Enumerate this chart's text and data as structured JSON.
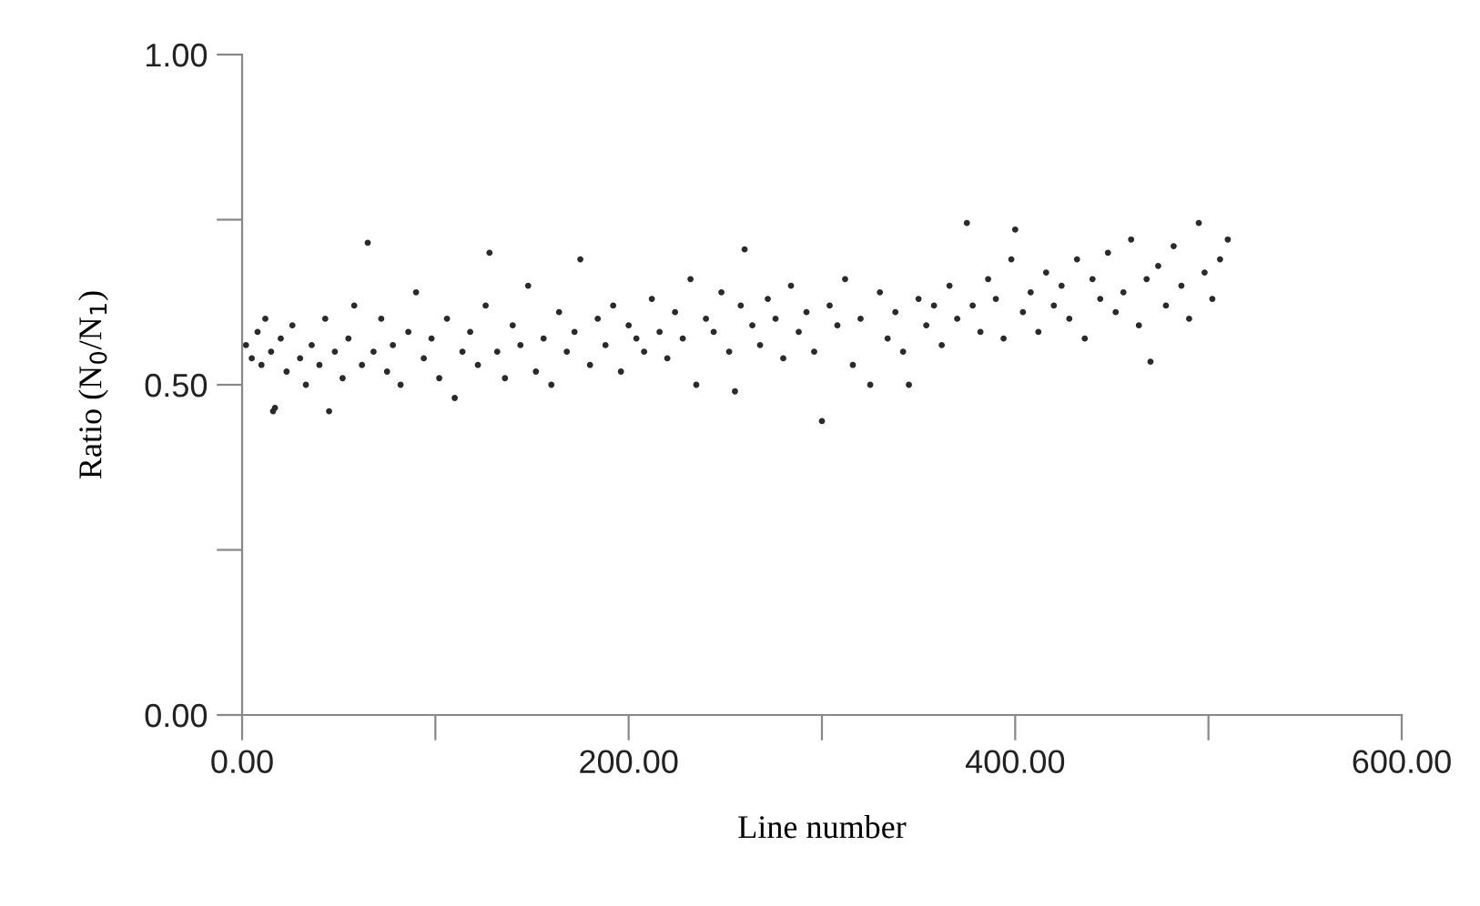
{
  "chart_data": {
    "type": "scatter",
    "xlabel": "Line number",
    "ylabel": "Ratio (N$_{0}$/N$_{1}$)",
    "x": [
      2,
      5,
      8,
      10,
      12,
      15,
      16,
      17,
      20,
      23,
      26,
      30,
      33,
      36,
      40,
      43,
      45,
      48,
      52,
      55,
      58,
      62,
      65,
      68,
      72,
      75,
      78,
      82,
      86,
      90,
      94,
      98,
      102,
      106,
      110,
      114,
      118,
      122,
      126,
      128,
      132,
      136,
      140,
      144,
      148,
      152,
      156,
      160,
      164,
      168,
      172,
      175,
      180,
      184,
      188,
      192,
      196,
      200,
      204,
      208,
      212,
      216,
      220,
      224,
      228,
      232,
      235,
      240,
      244,
      248,
      252,
      255,
      258,
      260,
      264,
      268,
      272,
      276,
      280,
      284,
      288,
      292,
      296,
      300,
      304,
      308,
      312,
      316,
      320,
      325,
      330,
      334,
      338,
      342,
      345,
      350,
      354,
      358,
      362,
      366,
      370,
      375,
      378,
      382,
      386,
      390,
      394,
      398,
      400,
      404,
      408,
      412,
      416,
      420,
      424,
      428,
      432,
      436,
      440,
      444,
      448,
      452,
      456,
      460,
      464,
      468,
      470,
      474,
      478,
      482,
      486,
      490,
      495,
      498,
      502,
      506,
      510
    ],
    "values": [
      0.56,
      0.54,
      0.58,
      0.53,
      0.6,
      0.55,
      0.46,
      0.465,
      0.57,
      0.52,
      0.59,
      0.54,
      0.5,
      0.56,
      0.53,
      0.6,
      0.46,
      0.55,
      0.51,
      0.57,
      0.62,
      0.53,
      0.715,
      0.55,
      0.6,
      0.52,
      0.56,
      0.5,
      0.58,
      0.64,
      0.54,
      0.57,
      0.51,
      0.6,
      0.48,
      0.55,
      0.58,
      0.53,
      0.62,
      0.7,
      0.55,
      0.51,
      0.59,
      0.56,
      0.65,
      0.52,
      0.57,
      0.5,
      0.61,
      0.55,
      0.58,
      0.69,
      0.53,
      0.6,
      0.56,
      0.62,
      0.52,
      0.59,
      0.57,
      0.55,
      0.63,
      0.58,
      0.54,
      0.61,
      0.57,
      0.66,
      0.5,
      0.6,
      0.58,
      0.64,
      0.55,
      0.49,
      0.62,
      0.705,
      0.59,
      0.56,
      0.63,
      0.6,
      0.54,
      0.65,
      0.58,
      0.61,
      0.55,
      0.445,
      0.62,
      0.59,
      0.66,
      0.53,
      0.6,
      0.5,
      0.64,
      0.57,
      0.61,
      0.55,
      0.5,
      0.63,
      0.59,
      0.62,
      0.56,
      0.65,
      0.6,
      0.745,
      0.62,
      0.58,
      0.66,
      0.63,
      0.57,
      0.69,
      0.735,
      0.61,
      0.64,
      0.58,
      0.67,
      0.62,
      0.65,
      0.6,
      0.69,
      0.57,
      0.66,
      0.63,
      0.7,
      0.61,
      0.64,
      0.72,
      0.59,
      0.66,
      0.535,
      0.68,
      0.62,
      0.71,
      0.65,
      0.6,
      0.745,
      0.67,
      0.63,
      0.69,
      0.72
    ],
    "color": "#2a2a2a",
    "marker": "circle",
    "xlim": [
      0,
      600
    ],
    "xticks": [
      {
        "value": 0,
        "label": "0.00"
      },
      {
        "value": 100,
        "label": null
      },
      {
        "value": 200,
        "label": "200.00"
      },
      {
        "value": 300,
        "label": null
      },
      {
        "value": 400,
        "label": "400.00"
      },
      {
        "value": 500,
        "label": null
      },
      {
        "value": 600,
        "label": "600.00"
      }
    ],
    "ylim": [
      0,
      1
    ],
    "yticks": [
      {
        "value": 0,
        "label": "0.00"
      },
      {
        "value": 0.25,
        "label": null
      },
      {
        "value": 0.5,
        "label": "0.50"
      },
      {
        "value": 0.75,
        "label": null
      },
      {
        "value": 1,
        "label": "1.00"
      }
    ],
    "grid": false,
    "legend": false
  }
}
